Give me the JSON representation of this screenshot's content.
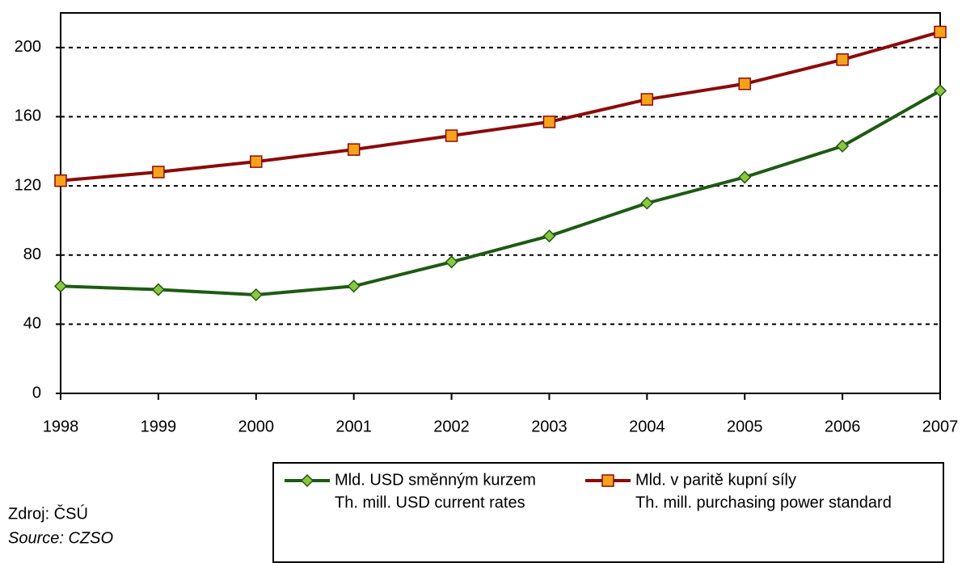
{
  "chart_data": {
    "type": "line",
    "x": [
      1998,
      1999,
      2000,
      2001,
      2002,
      2003,
      2004,
      2005,
      2006,
      2007
    ],
    "xlim": [
      1998,
      2007
    ],
    "xticks": [
      1998,
      1999,
      2000,
      2001,
      2002,
      2003,
      2004,
      2005,
      2006,
      2007
    ],
    "ylim": [
      0,
      220
    ],
    "yticks": [
      0,
      40,
      80,
      120,
      160,
      200
    ],
    "grid": true,
    "series": [
      {
        "name": "Mld. USD směnným kurzem",
        "name_en": "Th. mill. USD current rates",
        "color": "#1e5a14",
        "marker_color": "#8dc63f",
        "marker": "diamond",
        "values": [
          62,
          60,
          57,
          62,
          76,
          91,
          110,
          125,
          143,
          175
        ]
      },
      {
        "name": "Mld. v paritě kupní síly",
        "name_en": "Th. mill. purchasing power standard",
        "color": "#8b0a0a",
        "marker_color": "#f7a21b",
        "marker": "square",
        "values": [
          123,
          128,
          134,
          141,
          149,
          157,
          170,
          179,
          193,
          209
        ]
      }
    ],
    "source": "Zdroj: ČSÚ",
    "source_en": "Source: CZSO"
  }
}
